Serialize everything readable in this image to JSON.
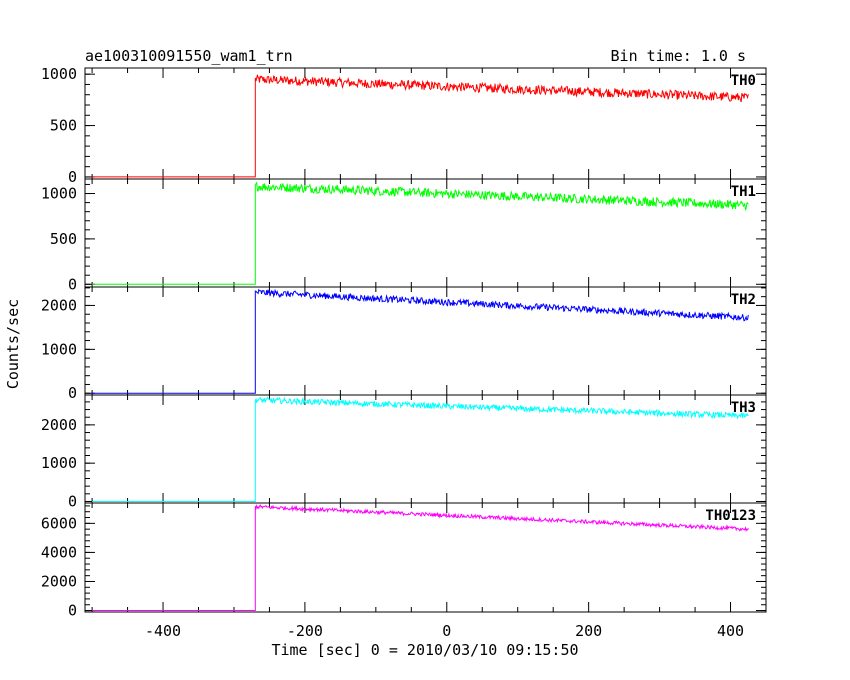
{
  "chart_data": {
    "type": "line",
    "title_left": "ae100310091550_wam1_trn",
    "title_right": "Bin time: 1.0 s",
    "xlabel": "Time [sec] 0 = 2010/03/10 09:15:50",
    "ylabel": "Counts/sec",
    "xlim": [
      -510,
      450
    ],
    "xticks": [
      -400,
      -200,
      0,
      200,
      400
    ],
    "x_range": [
      -500,
      425
    ],
    "onset": -270,
    "grid": false,
    "panels": [
      {
        "name": "TH0",
        "color": "#ff0000",
        "ylim": [
          -20,
          1060
        ],
        "yticks": [
          0,
          500,
          1000
        ],
        "baseline": 0,
        "start_value": 950,
        "end_value": 770,
        "noise": 90
      },
      {
        "name": "TH1",
        "color": "#00ff00",
        "ylim": [
          -30,
          1160
        ],
        "yticks": [
          0,
          500,
          1000
        ],
        "baseline": 0,
        "start_value": 1080,
        "end_value": 870,
        "noise": 100
      },
      {
        "name": "TH2",
        "color": "#0000ff",
        "ylim": [
          -40,
          2420
        ],
        "yticks": [
          0,
          1000,
          2000
        ],
        "baseline": 0,
        "start_value": 2300,
        "end_value": 1720,
        "noise": 150
      },
      {
        "name": "TH3",
        "color": "#00ffff",
        "ylim": [
          -40,
          2780
        ],
        "yticks": [
          0,
          1000,
          2000
        ],
        "baseline": 0,
        "start_value": 2650,
        "end_value": 2230,
        "noise": 150
      },
      {
        "name": "TH0123",
        "color": "#ff00ff",
        "ylim": [
          -100,
          7400
        ],
        "yticks": [
          0,
          2000,
          4000,
          6000
        ],
        "baseline": 0,
        "start_value": 7150,
        "end_value": 5600,
        "noise": 250
      }
    ]
  }
}
